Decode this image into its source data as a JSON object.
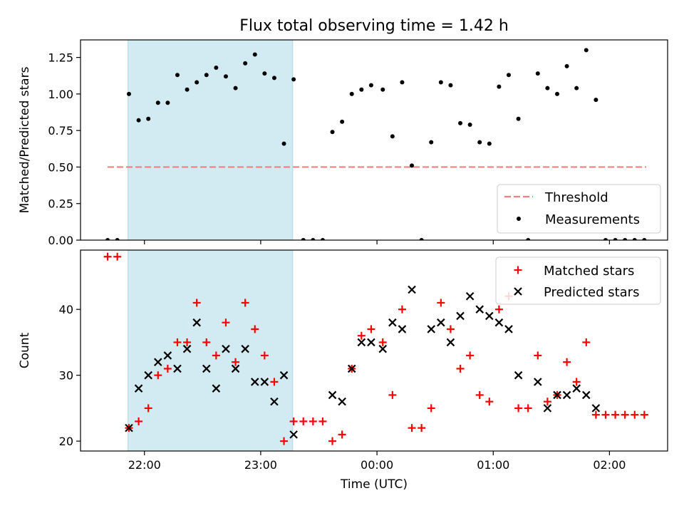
{
  "figure_title": "Flux total observing time = 1.42 h",
  "colors": {
    "threshold": "#f08080",
    "measurements": "#000000",
    "matched": "#ff0000",
    "predicted": "#000000",
    "shade": "#add8e6"
  },
  "chart_data": [
    {
      "type": "scatter",
      "title": "Flux total observing time = 1.42 h",
      "xlabel": "",
      "ylabel": "Matched/Predicted stars",
      "x_unit": "minutes relative to 00:00 UTC",
      "xlim": [
        -153,
        150
      ],
      "ylim": [
        0.0,
        1.37
      ],
      "yticks": [
        0.0,
        0.25,
        0.5,
        0.75,
        1.0,
        1.25
      ],
      "ytick_labels": [
        "0.00",
        "0.25",
        "0.50",
        "0.75",
        "1.00",
        "1.25"
      ],
      "xticks": [
        -120,
        -60,
        0,
        60,
        120
      ],
      "shaded_span": [
        -128.5,
        -43.5
      ],
      "grid": false,
      "legend_position": "lower right",
      "threshold": {
        "name": "Threshold",
        "y": 0.5,
        "x_range": [
          -139,
          139
        ],
        "style": "dashed"
      },
      "series": [
        {
          "name": "Measurements",
          "marker": "dot",
          "points": [
            [
              -139,
              0.0
            ],
            [
              -134,
              0.0
            ],
            [
              -128,
              1.0
            ],
            [
              -123,
              0.82
            ],
            [
              -118,
              0.83
            ],
            [
              -113,
              0.94
            ],
            [
              -108,
              0.94
            ],
            [
              -103,
              1.13
            ],
            [
              -98,
              1.03
            ],
            [
              -93,
              1.08
            ],
            [
              -88,
              1.13
            ],
            [
              -83,
              1.18
            ],
            [
              -78,
              1.12
            ],
            [
              -73,
              1.04
            ],
            [
              -68,
              1.21
            ],
            [
              -63,
              1.27
            ],
            [
              -58,
              1.14
            ],
            [
              -53,
              1.11
            ],
            [
              -48,
              0.66
            ],
            [
              -43,
              1.1
            ],
            [
              -38,
              0.0
            ],
            [
              -33,
              0.0
            ],
            [
              -28,
              0.0
            ],
            [
              -23,
              0.74
            ],
            [
              -18,
              0.81
            ],
            [
              -13,
              1.0
            ],
            [
              -8,
              1.03
            ],
            [
              -3,
              1.06
            ],
            [
              3,
              1.03
            ],
            [
              8,
              0.71
            ],
            [
              13,
              1.08
            ],
            [
              18,
              0.51
            ],
            [
              23,
              0.0
            ],
            [
              28,
              0.67
            ],
            [
              33,
              1.08
            ],
            [
              38,
              1.06
            ],
            [
              43,
              0.8
            ],
            [
              48,
              0.79
            ],
            [
              53,
              0.67
            ],
            [
              58,
              0.66
            ],
            [
              63,
              1.05
            ],
            [
              68,
              1.13
            ],
            [
              73,
              0.83
            ],
            [
              78,
              0.0
            ],
            [
              83,
              1.14
            ],
            [
              88,
              1.04
            ],
            [
              93,
              1.0
            ],
            [
              98,
              1.19
            ],
            [
              103,
              1.04
            ],
            [
              108,
              1.3
            ],
            [
              113,
              0.96
            ],
            [
              118,
              0.0
            ],
            [
              123,
              0.0
            ],
            [
              128,
              0.0
            ],
            [
              133,
              0.0
            ],
            [
              138,
              0.0
            ]
          ]
        }
      ]
    },
    {
      "type": "scatter",
      "title": "",
      "xlabel": "Time (UTC)",
      "ylabel": "Count",
      "x_unit": "minutes relative to 00:00 UTC",
      "xlim": [
        -153,
        150
      ],
      "ylim": [
        18.5,
        49
      ],
      "yticks": [
        20,
        30,
        40
      ],
      "ytick_labels": [
        "20",
        "30",
        "40"
      ],
      "xticks": [
        -120,
        -60,
        0,
        60,
        120
      ],
      "xtick_labels": [
        "22:00",
        "23:00",
        "00:00",
        "01:00",
        "02:00"
      ],
      "shaded_span": [
        -128.5,
        -43.5
      ],
      "grid": false,
      "legend_position": "upper right",
      "series": [
        {
          "name": "Matched stars",
          "marker": "plus",
          "points": [
            [
              -139,
              48
            ],
            [
              -134,
              48
            ],
            [
              -128,
              22
            ],
            [
              -123,
              23
            ],
            [
              -118,
              25
            ],
            [
              -113,
              30
            ],
            [
              -108,
              31
            ],
            [
              -103,
              35
            ],
            [
              -98,
              35
            ],
            [
              -93,
              41
            ],
            [
              -88,
              35
            ],
            [
              -83,
              33
            ],
            [
              -78,
              38
            ],
            [
              -73,
              32
            ],
            [
              -68,
              41
            ],
            [
              -63,
              37
            ],
            [
              -58,
              33
            ],
            [
              -53,
              29
            ],
            [
              -48,
              20
            ],
            [
              -43,
              23
            ],
            [
              -38,
              23
            ],
            [
              -33,
              23
            ],
            [
              -28,
              23
            ],
            [
              -23,
              20
            ],
            [
              -18,
              21
            ],
            [
              -13,
              31
            ],
            [
              -8,
              36
            ],
            [
              -3,
              37
            ],
            [
              3,
              35
            ],
            [
              8,
              27
            ],
            [
              13,
              40
            ],
            [
              18,
              22
            ],
            [
              23,
              22
            ],
            [
              28,
              25
            ],
            [
              33,
              41
            ],
            [
              38,
              37
            ],
            [
              43,
              31
            ],
            [
              48,
              33
            ],
            [
              53,
              27
            ],
            [
              58,
              26
            ],
            [
              63,
              40
            ],
            [
              68,
              42
            ],
            [
              73,
              25
            ],
            [
              78,
              25
            ],
            [
              83,
              33
            ],
            [
              88,
              26
            ],
            [
              93,
              27
            ],
            [
              98,
              32
            ],
            [
              103,
              29
            ],
            [
              108,
              35
            ],
            [
              113,
              24
            ],
            [
              118,
              24
            ],
            [
              123,
              24
            ],
            [
              128,
              24
            ],
            [
              133,
              24
            ],
            [
              138,
              24
            ]
          ]
        },
        {
          "name": "Predicted stars",
          "marker": "x",
          "points": [
            [
              -128,
              22
            ],
            [
              -123,
              28
            ],
            [
              -118,
              30
            ],
            [
              -113,
              32
            ],
            [
              -108,
              33
            ],
            [
              -103,
              31
            ],
            [
              -98,
              34
            ],
            [
              -93,
              38
            ],
            [
              -88,
              31
            ],
            [
              -83,
              28
            ],
            [
              -78,
              34
            ],
            [
              -73,
              31
            ],
            [
              -68,
              34
            ],
            [
              -63,
              29
            ],
            [
              -58,
              29
            ],
            [
              -53,
              26
            ],
            [
              -48,
              30
            ],
            [
              -43,
              21
            ],
            [
              -23,
              27
            ],
            [
              -18,
              26
            ],
            [
              -13,
              31
            ],
            [
              -8,
              35
            ],
            [
              -3,
              35
            ],
            [
              3,
              34
            ],
            [
              8,
              38
            ],
            [
              13,
              37
            ],
            [
              18,
              43
            ],
            [
              28,
              37
            ],
            [
              33,
              38
            ],
            [
              38,
              35
            ],
            [
              43,
              39
            ],
            [
              48,
              42
            ],
            [
              53,
              40
            ],
            [
              58,
              39
            ],
            [
              63,
              38
            ],
            [
              68,
              37
            ],
            [
              73,
              30
            ],
            [
              83,
              29
            ],
            [
              88,
              25
            ],
            [
              93,
              27
            ],
            [
              98,
              27
            ],
            [
              103,
              28
            ],
            [
              108,
              27
            ],
            [
              113,
              25
            ]
          ]
        }
      ]
    }
  ]
}
